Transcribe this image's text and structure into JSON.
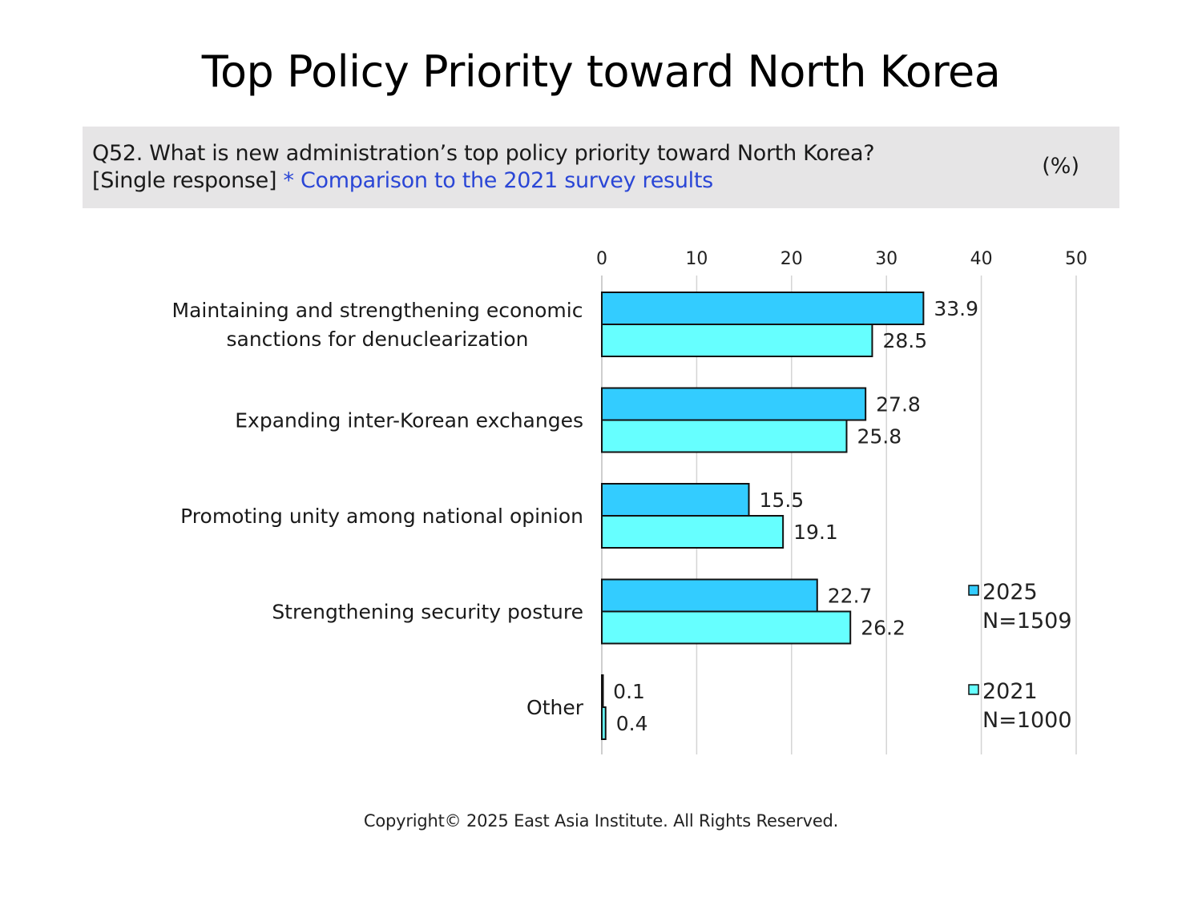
{
  "title": "Top Policy Priority toward North Korea",
  "question": {
    "line1": "Q52. What is new administration’s top policy priority toward North Korea?",
    "line2_prefix": "[Single response]",
    "line2_note": "* Comparison to the 2021 survey results",
    "unit": "(%)"
  },
  "copyright": "Copyright© 2025 East Asia Institute. All Rights Reserved.",
  "chart_data": {
    "type": "bar",
    "orientation": "horizontal",
    "categories": [
      [
        "Maintaining and strengthening economic",
        "sanctions for denuclearization"
      ],
      [
        "Expanding inter-Korean exchanges"
      ],
      [
        "Promoting unity among national opinion"
      ],
      [
        "Strengthening security posture"
      ],
      [
        "Other"
      ]
    ],
    "series": [
      {
        "name": "2025",
        "sample": "N=1509",
        "color": "#33ccff",
        "values": [
          33.9,
          27.8,
          15.5,
          22.7,
          0.1
        ]
      },
      {
        "name": "2021",
        "sample": "N=1000",
        "color": "#66ffff",
        "values": [
          28.5,
          25.8,
          19.1,
          26.2,
          0.4
        ]
      }
    ],
    "xlim": [
      0,
      50
    ],
    "xticks": [
      0,
      10,
      20,
      30,
      40,
      50
    ],
    "grid": true,
    "axis_position": "top",
    "legend": "right"
  }
}
